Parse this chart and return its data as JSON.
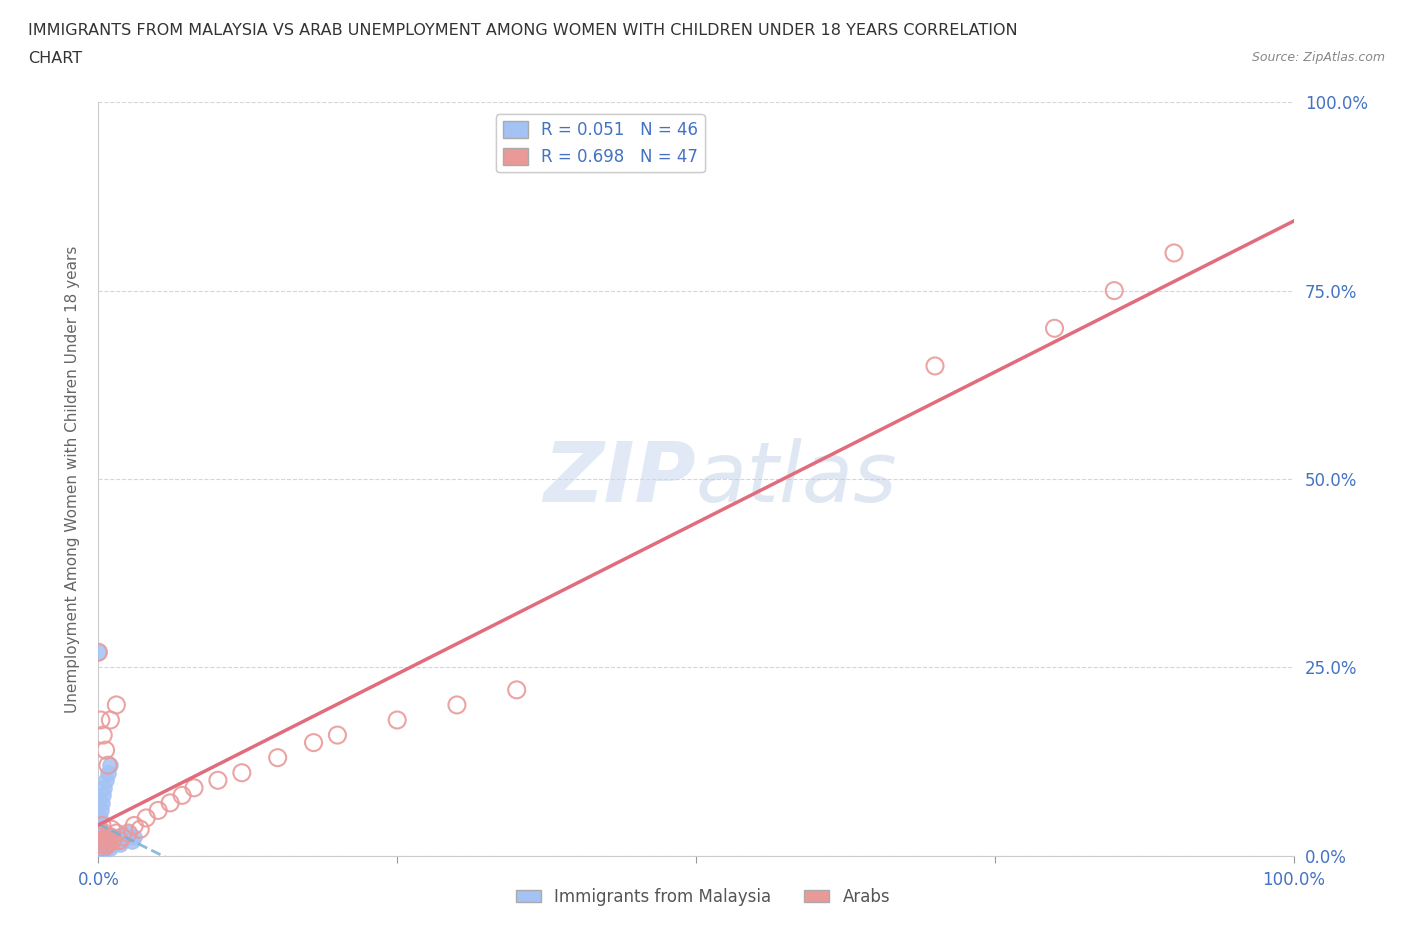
{
  "title_line1": "IMMIGRANTS FROM MALAYSIA VS ARAB UNEMPLOYMENT AMONG WOMEN WITH CHILDREN UNDER 18 YEARS CORRELATION",
  "title_line2": "CHART",
  "source": "Source: ZipAtlas.com",
  "ylabel": "Unemployment Among Women with Children Under 18 years",
  "xlim": [
    0.0,
    1.0
  ],
  "ylim": [
    0.0,
    1.0
  ],
  "xticks": [
    0.0,
    0.25,
    0.5,
    0.75,
    1.0
  ],
  "yticks": [
    0.0,
    0.25,
    0.5,
    0.75,
    1.0
  ],
  "blue_color": "#a4c2f4",
  "pink_color": "#ea9999",
  "blue_line_color": "#7bafd4",
  "pink_line_color": "#e06c7c",
  "blue_R": 0.051,
  "blue_N": 46,
  "pink_R": 0.698,
  "pink_N": 47,
  "legend_label_blue": "Immigrants from Malaysia",
  "legend_label_pink": "Arabs",
  "tick_color": "#4472c4",
  "watermark": "ZIPatlas",
  "background_color": "#ffffff",
  "grid_color": "#cccccc",
  "title_color": "#333333",
  "axis_label_color": "#666666",
  "source_color": "#888888"
}
